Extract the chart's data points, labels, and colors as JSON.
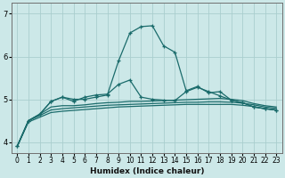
{
  "background_color": "#cce8e8",
  "grid_color": "#aacece",
  "line_color": "#1a6b6b",
  "xlabel": "Humidex (Indice chaleur)",
  "xlim": [
    -0.5,
    23.5
  ],
  "ylim": [
    3.75,
    7.25
  ],
  "yticks": [
    4,
    5,
    6,
    7
  ],
  "xticks": [
    0,
    1,
    2,
    3,
    4,
    5,
    6,
    7,
    8,
    9,
    10,
    11,
    12,
    13,
    14,
    15,
    16,
    17,
    18,
    19,
    20,
    21,
    22,
    23
  ],
  "series": [
    {
      "x": [
        0,
        1,
        2,
        3,
        4,
        5,
        6,
        7,
        8,
        9,
        10,
        11,
        12,
        13,
        14,
        15,
        16,
        17,
        18,
        19,
        20,
        21,
        22,
        23
      ],
      "y": [
        3.9,
        4.5,
        4.65,
        4.95,
        5.05,
        5.0,
        5.0,
        5.05,
        5.1,
        5.9,
        6.55,
        6.7,
        6.72,
        6.25,
        6.1,
        5.2,
        5.3,
        5.15,
        5.18,
        4.98,
        4.92,
        4.82,
        4.78,
        4.75
      ],
      "marker": true
    },
    {
      "x": [
        0,
        1,
        2,
        3,
        4,
        5,
        6,
        7,
        8,
        9,
        10,
        11,
        12,
        13,
        14,
        15,
        16,
        17,
        18,
        19,
        20,
        21,
        22,
        23
      ],
      "y": [
        3.9,
        4.5,
        4.65,
        4.95,
        5.05,
        4.95,
        5.05,
        5.1,
        5.12,
        5.35,
        5.45,
        5.05,
        5.0,
        4.98,
        4.97,
        5.18,
        5.28,
        5.18,
        5.08,
        4.98,
        4.92,
        4.82,
        4.78,
        4.75
      ],
      "marker": true
    },
    {
      "x": [
        0,
        1,
        2,
        3,
        4,
        5,
        6,
        7,
        8,
        9,
        10,
        11,
        12,
        13,
        14,
        15,
        16,
        17,
        18,
        19,
        20,
        21,
        22,
        23
      ],
      "y": [
        3.9,
        4.5,
        4.65,
        4.82,
        4.85,
        4.85,
        4.87,
        4.9,
        4.92,
        4.93,
        4.95,
        4.95,
        4.96,
        4.97,
        4.98,
        4.99,
        5.0,
        5.01,
        5.02,
        5.0,
        4.97,
        4.9,
        4.85,
        4.82
      ],
      "marker": false
    },
    {
      "x": [
        0,
        1,
        2,
        3,
        4,
        5,
        6,
        7,
        8,
        9,
        10,
        11,
        12,
        13,
        14,
        15,
        16,
        17,
        18,
        19,
        20,
        21,
        22,
        23
      ],
      "y": [
        3.9,
        4.5,
        4.62,
        4.75,
        4.78,
        4.8,
        4.82,
        4.84,
        4.86,
        4.87,
        4.88,
        4.89,
        4.9,
        4.91,
        4.92,
        4.93,
        4.93,
        4.94,
        4.94,
        4.93,
        4.91,
        4.87,
        4.82,
        4.79
      ],
      "marker": false
    },
    {
      "x": [
        0,
        1,
        2,
        3,
        4,
        5,
        6,
        7,
        8,
        9,
        10,
        11,
        12,
        13,
        14,
        15,
        16,
        17,
        18,
        19,
        20,
        21,
        22,
        23
      ],
      "y": [
        3.9,
        4.47,
        4.58,
        4.69,
        4.72,
        4.74,
        4.76,
        4.78,
        4.8,
        4.82,
        4.83,
        4.84,
        4.85,
        4.86,
        4.87,
        4.88,
        4.88,
        4.88,
        4.88,
        4.88,
        4.86,
        4.83,
        4.78,
        4.75
      ],
      "marker": false
    }
  ],
  "figsize": [
    3.2,
    2.0
  ],
  "dpi": 100
}
